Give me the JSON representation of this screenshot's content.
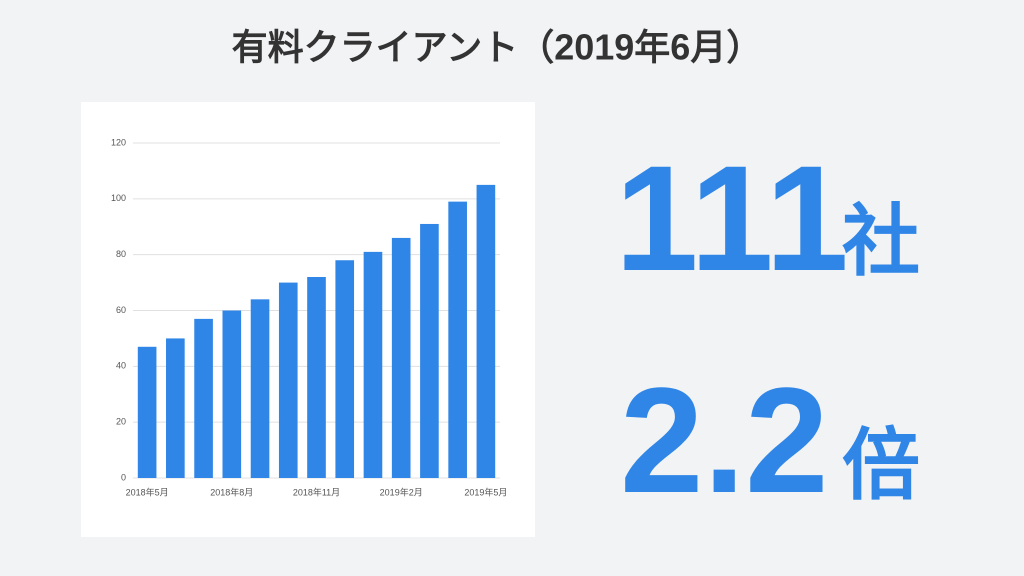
{
  "chart_data": {
    "type": "bar",
    "title": "有料クライアント（2019年6月）",
    "categories": [
      "2018年5月",
      null,
      null,
      "2018年8月",
      null,
      null,
      "2018年11月",
      null,
      null,
      "2019年2月",
      null,
      null,
      "2019年5月"
    ],
    "values": [
      47,
      50,
      57,
      60,
      64,
      70,
      72,
      78,
      81,
      86,
      91,
      99,
      105
    ],
    "color": "#2f86e6",
    "ylim": [
      0,
      120
    ],
    "yticks": [
      0,
      20,
      40,
      60,
      80,
      100,
      120
    ],
    "grid": true
  },
  "stats": [
    {
      "value": "111",
      "unit": "社"
    },
    {
      "value": "2.2",
      "unit": "倍"
    }
  ]
}
